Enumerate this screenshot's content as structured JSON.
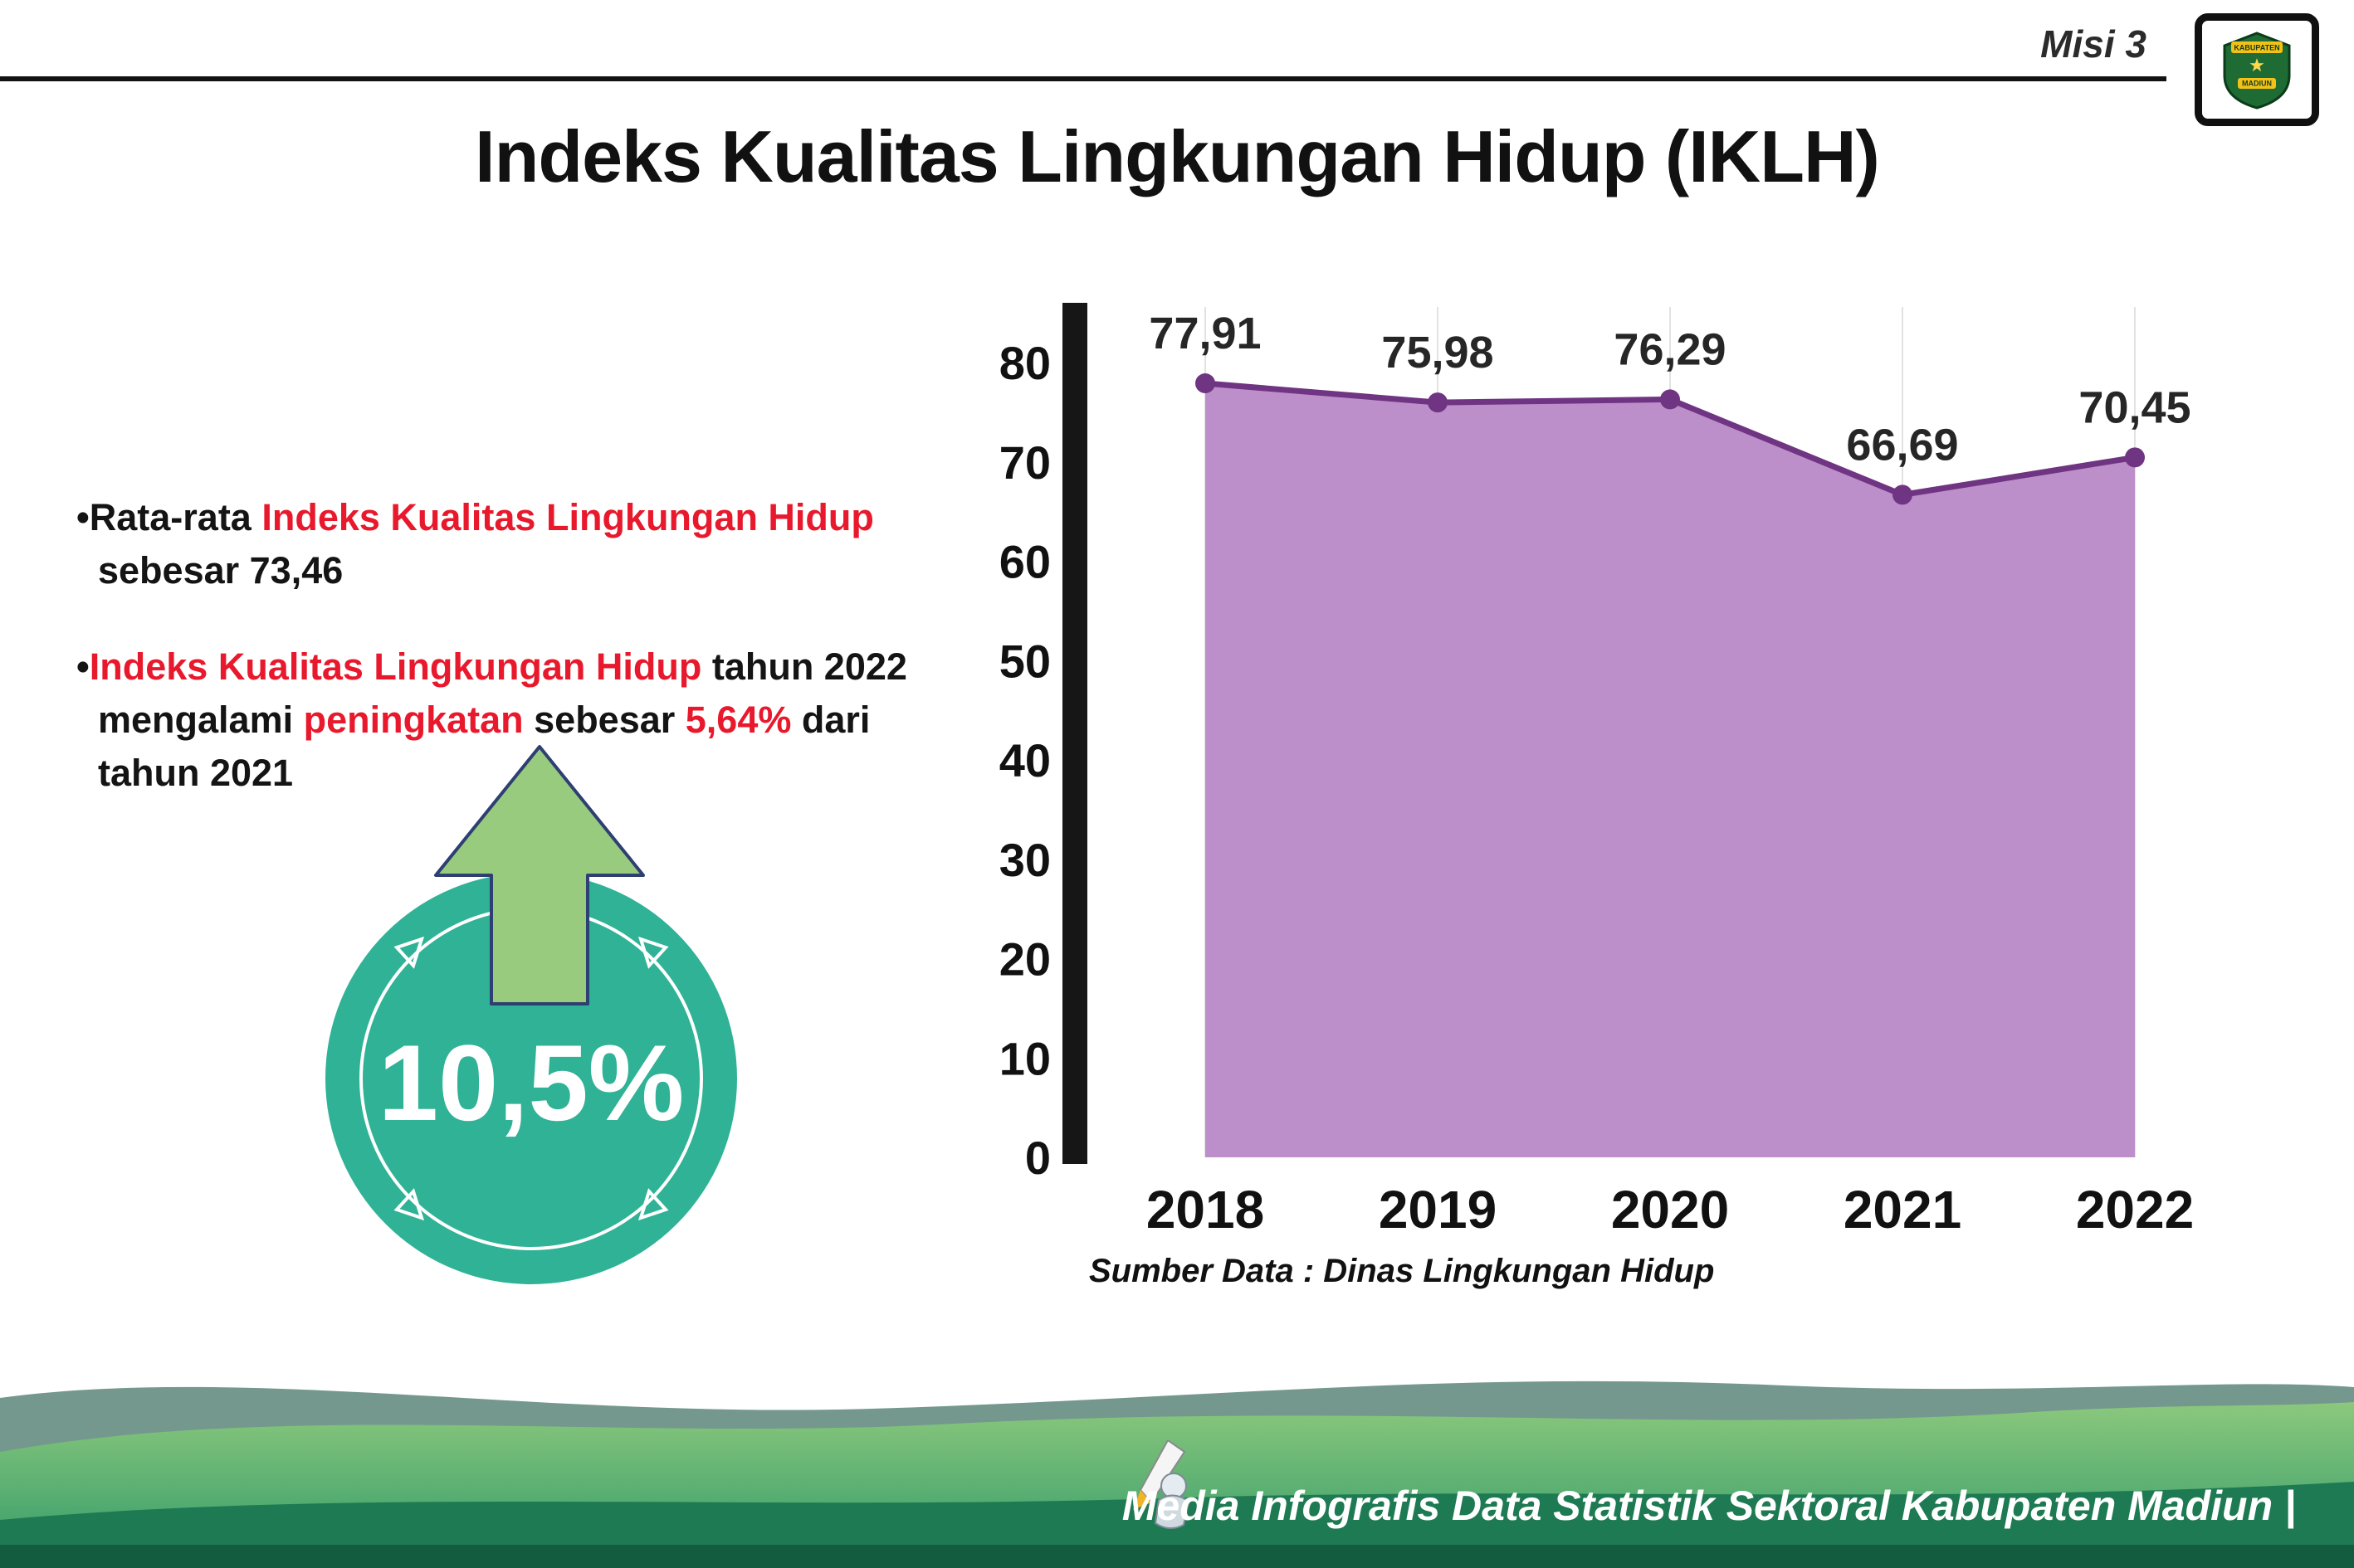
{
  "header": {
    "misi_label": "Misi 3",
    "logo": {
      "line1": "KABUPATEN",
      "line2": "MADIUN",
      "star": "★"
    }
  },
  "title": "Indeks Kualitas Lingkungan Hidup (IKLH)",
  "colors": {
    "red_accent": "#e8192c",
    "teal_badge": "#2fb295",
    "arrow_green": "#99cb7e",
    "purple_fill": "#bd8fca",
    "purple_line": "#6f3482"
  },
  "bullets": [
    {
      "lines": [
        [
          {
            "t": "•",
            "c": "k"
          },
          {
            "t": "Rata-rata ",
            "c": "k"
          },
          {
            "t": "Indeks Kualitas Lingkungan Hidup",
            "c": "r"
          }
        ],
        [
          {
            "t": "sebesar 73,46",
            "c": "k"
          }
        ]
      ]
    },
    {
      "lines": [
        [
          {
            "t": "•",
            "c": "k"
          },
          {
            "t": "Indeks Kualitas Lingkungan Hidup",
            "c": "r"
          },
          {
            "t": " tahun 2022",
            "c": "k"
          }
        ],
        [
          {
            "t": "mengalami ",
            "c": "k"
          },
          {
            "t": "peningkatan",
            "c": "r"
          },
          {
            "t": " sebesar ",
            "c": "k"
          },
          {
            "t": "5,64%",
            "c": "r"
          },
          {
            "t": " dari",
            "c": "k"
          }
        ],
        [
          {
            "t": "tahun 2021",
            "c": "k"
          }
        ]
      ]
    }
  ],
  "badge": {
    "value": "10,5%",
    "circle_color": "#2fb295",
    "arrow_color": "#99cb7e"
  },
  "chart_data": {
    "type": "area",
    "categories": [
      "2018",
      "2019",
      "2020",
      "2021",
      "2022"
    ],
    "values": [
      77.91,
      75.98,
      76.29,
      66.69,
      70.45
    ],
    "labels": [
      "77,91",
      "75,98",
      "76,29",
      "66,69",
      "70,45"
    ],
    "yticks": [
      0,
      10,
      20,
      30,
      40,
      50,
      60,
      70,
      80
    ],
    "ylim": [
      0,
      80
    ],
    "xlabel": "",
    "ylabel": "",
    "grid": "vertical",
    "legend": "none",
    "source": "Sumber Data : Dinas Lingkungan Hidup",
    "fill_color": "#bd8fca",
    "line_color": "#6f3482"
  },
  "footer": {
    "credit": "Media Infografis Data Statistik Sektoral Kabupaten Madiun |"
  }
}
